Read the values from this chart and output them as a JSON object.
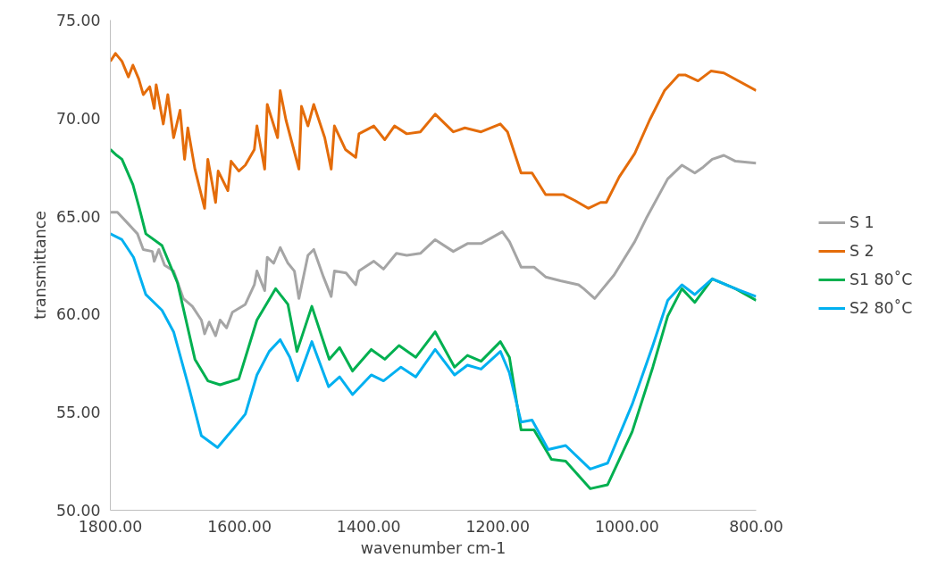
{
  "chart_data": {
    "type": "line",
    "xlabel": "wavenumber cm-1",
    "ylabel": "transmittance",
    "xlim": [
      1800,
      800
    ],
    "ylim": [
      50,
      75
    ],
    "xticks": [
      {
        "value": 1800,
        "label": "1800.00"
      },
      {
        "value": 1600,
        "label": "1600.00"
      },
      {
        "value": 1400,
        "label": "1400.00"
      },
      {
        "value": 1200,
        "label": "1200.00"
      },
      {
        "value": 1000,
        "label": "1000.00"
      },
      {
        "value": 800,
        "label": "800.00"
      }
    ],
    "yticks": [
      {
        "value": 50,
        "label": "50.00"
      },
      {
        "value": 55,
        "label": "55.00"
      },
      {
        "value": 60,
        "label": "60.00"
      },
      {
        "value": 65,
        "label": "65.00"
      },
      {
        "value": 70,
        "label": "70.00"
      },
      {
        "value": 75,
        "label": "75.00"
      }
    ],
    "legend": "right",
    "series": [
      {
        "name": "S 1",
        "color": "#a5a5a5",
        "x": [
          1800,
          1789,
          1772,
          1758,
          1749,
          1735,
          1732,
          1725,
          1716,
          1702,
          1687,
          1673,
          1659,
          1654,
          1647,
          1637,
          1630,
          1620,
          1611,
          1591,
          1577,
          1573,
          1561,
          1557,
          1547,
          1537,
          1525,
          1515,
          1508,
          1494,
          1485,
          1470,
          1458,
          1453,
          1435,
          1420,
          1415,
          1392,
          1377,
          1357,
          1341,
          1320,
          1297,
          1269,
          1247,
          1226,
          1193,
          1182,
          1164,
          1144,
          1126,
          1103,
          1075,
          1067,
          1050,
          1020,
          988,
          970,
          937,
          915,
          895,
          882,
          868,
          850,
          832,
          800
        ],
        "values": [
          65.2,
          65.2,
          64.6,
          64.1,
          63.3,
          63.2,
          62.7,
          63.3,
          62.5,
          62.2,
          60.8,
          60.4,
          59.7,
          59.0,
          59.6,
          58.9,
          59.7,
          59.3,
          60.1,
          60.5,
          61.5,
          62.2,
          61.2,
          62.9,
          62.6,
          63.4,
          62.6,
          62.2,
          60.8,
          63.0,
          63.3,
          61.9,
          60.9,
          62.2,
          62.1,
          61.5,
          62.2,
          62.7,
          62.3,
          63.1,
          63.0,
          63.1,
          63.8,
          63.2,
          63.6,
          63.6,
          64.2,
          63.7,
          62.4,
          62.4,
          61.9,
          61.7,
          61.5,
          61.3,
          60.8,
          62.0,
          63.7,
          64.9,
          66.9,
          67.6,
          67.2,
          67.5,
          67.9,
          68.1,
          67.8,
          67.7
        ]
      },
      {
        "name": "S 2",
        "color": "#e46c0a",
        "x": [
          1800,
          1792,
          1782,
          1772,
          1765,
          1756,
          1749,
          1739,
          1732,
          1729,
          1718,
          1711,
          1702,
          1692,
          1685,
          1680,
          1669,
          1654,
          1649,
          1637,
          1633,
          1618,
          1613,
          1601,
          1591,
          1577,
          1573,
          1561,
          1557,
          1541,
          1537,
          1528,
          1508,
          1504,
          1494,
          1485,
          1468,
          1458,
          1453,
          1436,
          1420,
          1415,
          1392,
          1375,
          1360,
          1341,
          1320,
          1297,
          1269,
          1251,
          1226,
          1196,
          1185,
          1164,
          1147,
          1126,
          1099,
          1081,
          1060,
          1041,
          1032,
          1012,
          988,
          965,
          942,
          920,
          910,
          890,
          870,
          850,
          800
        ],
        "values": [
          72.9,
          73.3,
          72.9,
          72.1,
          72.7,
          72.0,
          71.2,
          71.6,
          70.5,
          71.7,
          69.7,
          71.2,
          69.0,
          70.4,
          67.9,
          69.5,
          67.4,
          65.4,
          67.9,
          65.7,
          67.3,
          66.3,
          67.8,
          67.3,
          67.6,
          68.4,
          69.6,
          67.4,
          70.7,
          69.0,
          71.4,
          69.9,
          67.4,
          70.6,
          69.6,
          70.7,
          69.0,
          67.4,
          69.6,
          68.4,
          68.0,
          69.2,
          69.6,
          68.9,
          69.6,
          69.2,
          69.3,
          70.2,
          69.3,
          69.5,
          69.3,
          69.7,
          69.3,
          67.2,
          67.2,
          66.1,
          66.1,
          65.8,
          65.4,
          65.7,
          65.7,
          67.0,
          68.2,
          69.9,
          71.4,
          72.2,
          72.2,
          71.9,
          72.4,
          72.3,
          71.4
        ]
      },
      {
        "name": "S1 80˚C",
        "color": "#00b050",
        "x": [
          1800,
          1790,
          1782,
          1765,
          1755,
          1745,
          1720,
          1696,
          1669,
          1649,
          1630,
          1601,
          1573,
          1544,
          1525,
          1511,
          1488,
          1461,
          1445,
          1425,
          1396,
          1375,
          1353,
          1327,
          1297,
          1267,
          1247,
          1226,
          1196,
          1182,
          1164,
          1144,
          1117,
          1095,
          1057,
          1030,
          992,
          960,
          937,
          915,
          895,
          868,
          832,
          800
        ],
        "values": [
          68.4,
          68.1,
          67.9,
          66.6,
          65.4,
          64.1,
          63.5,
          61.6,
          57.7,
          56.6,
          56.4,
          56.7,
          59.7,
          61.3,
          60.5,
          58.1,
          60.4,
          57.7,
          58.3,
          57.1,
          58.2,
          57.7,
          58.4,
          57.8,
          59.1,
          57.3,
          57.9,
          57.6,
          58.6,
          57.8,
          54.1,
          54.1,
          52.6,
          52.5,
          51.1,
          51.3,
          54.0,
          57.3,
          59.9,
          61.3,
          60.6,
          61.8,
          61.3,
          60.7
        ]
      },
      {
        "name": "S2 80˚C",
        "color": "#00b0f0",
        "x": [
          1800,
          1782,
          1764,
          1745,
          1720,
          1702,
          1677,
          1659,
          1634,
          1611,
          1591,
          1573,
          1554,
          1537,
          1522,
          1510,
          1488,
          1462,
          1445,
          1425,
          1396,
          1377,
          1350,
          1327,
          1297,
          1267,
          1247,
          1226,
          1196,
          1182,
          1164,
          1147,
          1122,
          1095,
          1057,
          1030,
          992,
          960,
          937,
          915,
          895,
          868,
          832,
          800
        ],
        "values": [
          64.1,
          63.8,
          62.9,
          61.0,
          60.2,
          59.1,
          56.1,
          53.8,
          53.2,
          54.1,
          54.9,
          56.9,
          58.1,
          58.7,
          57.8,
          56.6,
          58.6,
          56.3,
          56.8,
          55.9,
          56.9,
          56.6,
          57.3,
          56.8,
          58.2,
          56.9,
          57.4,
          57.2,
          58.1,
          57.0,
          54.5,
          54.6,
          53.1,
          53.3,
          52.1,
          52.4,
          55.4,
          58.4,
          60.7,
          61.5,
          61.0,
          61.8,
          61.3,
          60.9
        ]
      }
    ]
  }
}
